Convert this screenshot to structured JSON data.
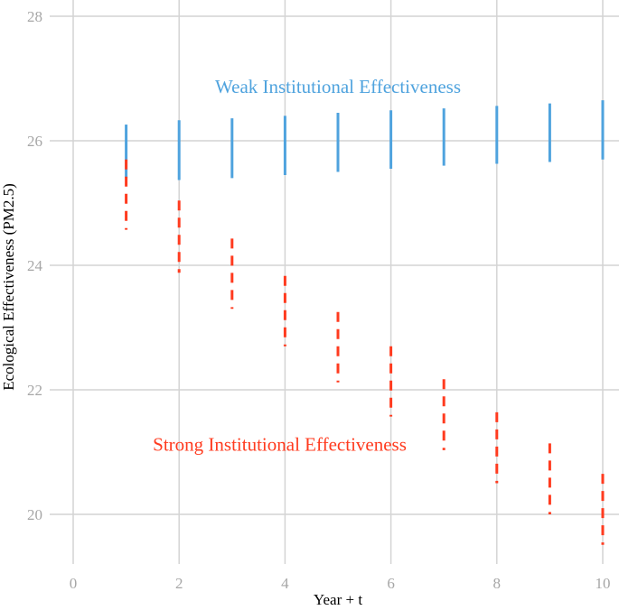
{
  "chart_data": {
    "type": "errorbar",
    "title": "",
    "xlabel": "Year + t",
    "ylabel": "Ecological Effectiveness (PM2.5)",
    "xlim": [
      0,
      10
    ],
    "ylim": [
      19.2,
      28.2
    ],
    "xticks": [
      0,
      2,
      4,
      6,
      8,
      10
    ],
    "yticks": [
      20,
      22,
      24,
      26,
      28
    ],
    "xtick_labels": [
      "0",
      "2",
      "4",
      "6",
      "8",
      "10"
    ],
    "ytick_labels": [
      "20",
      "22",
      "24",
      "26",
      "28"
    ],
    "grid": true,
    "legend": "none",
    "series": [
      {
        "name": "Weak Institutional Effectiveness",
        "color": "#4fa3de",
        "line_style": "solid",
        "x": [
          1,
          2,
          3,
          4,
          5,
          6,
          7,
          8,
          9,
          10
        ],
        "lower": [
          25.4,
          25.37,
          25.4,
          25.45,
          25.5,
          25.55,
          25.6,
          25.63,
          25.66,
          25.7
        ],
        "upper": [
          26.26,
          26.33,
          26.36,
          26.4,
          26.45,
          26.49,
          26.52,
          26.56,
          26.6,
          26.65
        ]
      },
      {
        "name": "Strong Institutional Effectiveness",
        "color": "#ff3b1f",
        "line_style": "dashed",
        "x": [
          1,
          2,
          3,
          4,
          5,
          6,
          7,
          8,
          9,
          10
        ],
        "lower": [
          24.57,
          23.88,
          23.3,
          22.7,
          22.12,
          21.57,
          21.03,
          20.5,
          20.0,
          19.51
        ],
        "upper": [
          25.7,
          25.04,
          24.43,
          23.83,
          23.25,
          22.7,
          22.17,
          21.64,
          21.14,
          20.65
        ]
      }
    ],
    "annotations": [
      {
        "text": "Weak Institutional Effectiveness",
        "x": 5.0,
        "y": 26.87,
        "color": "#4fa3de"
      },
      {
        "text": "Strong Institutional Effectiveness",
        "x": 3.9,
        "y": 21.12,
        "color": "#ff3b1f"
      }
    ]
  }
}
